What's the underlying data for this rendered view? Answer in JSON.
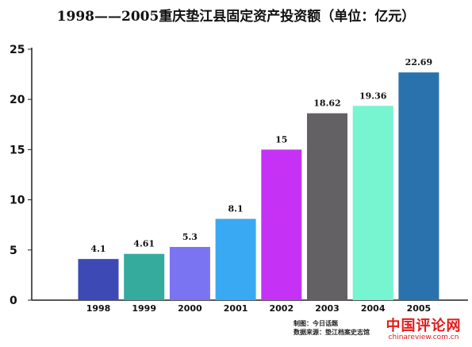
{
  "chart_data": {
    "type": "bar",
    "title": "1998——2005重庆垫江县固定资产投资额（单位：亿元）",
    "categories": [
      "1998",
      "1999",
      "2000",
      "2001",
      "2002",
      "2003",
      "2004",
      "2005"
    ],
    "values": [
      4.1,
      4.61,
      5.3,
      8.1,
      15,
      18.62,
      19.36,
      22.69
    ],
    "value_labels": [
      "4.1",
      "4.61",
      "5.3",
      "8.1",
      "15",
      "18.62",
      "19.36",
      "22.69"
    ],
    "colors": [
      "#3d4ab5",
      "#34ab9d",
      "#7b74f2",
      "#3aa9f3",
      "#c532f5",
      "#636164",
      "#77f4d0",
      "#2a72ad"
    ],
    "ylim": [
      0,
      25
    ],
    "yticks": [
      "0",
      "5",
      "10",
      "15",
      "20",
      "25"
    ],
    "xlabel": "",
    "ylabel": "",
    "grid": false
  },
  "credits": {
    "line1": "制图：今日话题",
    "line2": "数据来源：垫江档案史志馆"
  },
  "watermark": {
    "name": "中国评论网",
    "url": "chinareview.com.cn"
  }
}
